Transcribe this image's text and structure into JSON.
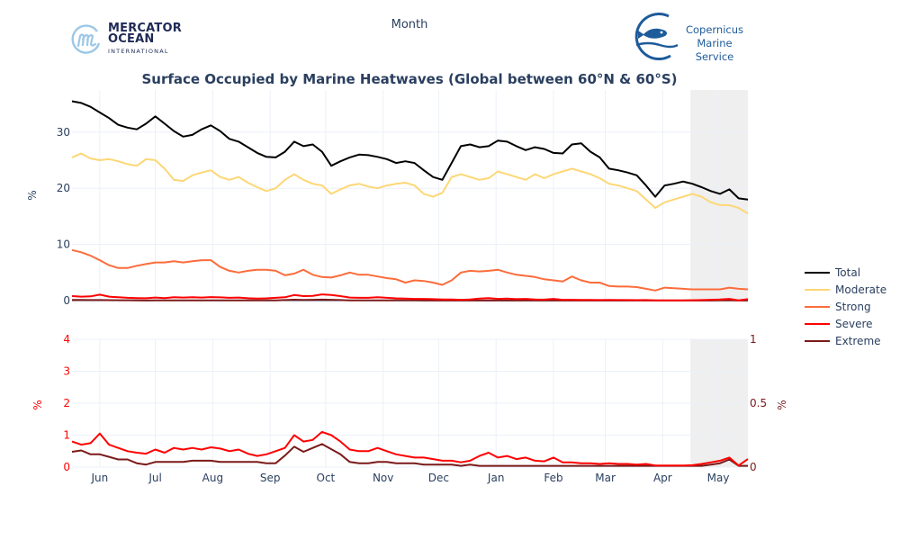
{
  "header": {
    "top_axis_label": "Month",
    "logo_left": {
      "line1": "MERCATOR",
      "line2": "OCEAN",
      "line3": "INTERNATIONAL"
    },
    "logo_right": {
      "line1": "Copernicus",
      "line2": "Marine Service"
    }
  },
  "chart_data": [
    {
      "type": "line",
      "title": "Surface Occupied by Marine Heatwaves (Global between 60°N & 60°S)",
      "xlabel": "Month",
      "ylabel": "%",
      "ylim": [
        0,
        37.5
      ],
      "yticks": [
        0,
        10,
        20,
        30
      ],
      "xticks": [
        "Jun",
        "Jul",
        "Aug",
        "Sep",
        "Oct",
        "Nov",
        "Dec",
        "Jan",
        "Feb",
        "Mar",
        "Apr",
        "May"
      ],
      "x_range_days": [
        0,
        365
      ],
      "xtick_days": [
        15,
        45,
        76,
        107,
        137,
        168,
        198,
        229,
        260,
        288,
        319,
        349
      ],
      "shaded_region_days": [
        334,
        365
      ],
      "grid": true,
      "legend_position": "right",
      "series": [
        {
          "name": "Total",
          "color": "#000000",
          "x": [
            0,
            5,
            10,
            15,
            20,
            25,
            30,
            35,
            40,
            45,
            50,
            55,
            60,
            65,
            70,
            75,
            80,
            85,
            90,
            95,
            100,
            105,
            110,
            115,
            120,
            125,
            130,
            135,
            140,
            145,
            150,
            155,
            160,
            165,
            170,
            175,
            180,
            185,
            190,
            195,
            200,
            205,
            210,
            215,
            220,
            225,
            230,
            235,
            240,
            245,
            250,
            255,
            260,
            265,
            270,
            275,
            280,
            285,
            290,
            295,
            300,
            305,
            310,
            315,
            320,
            325,
            330,
            335,
            340,
            345,
            350,
            355,
            360,
            365
          ],
          "values": [
            35.5,
            35.2,
            34.5,
            33.5,
            32.5,
            31.3,
            30.8,
            30.5,
            31.5,
            32.8,
            31.5,
            30.2,
            29.2,
            29.5,
            30.5,
            31.2,
            30.2,
            28.8,
            28.3,
            27.3,
            26.3,
            25.6,
            25.5,
            26.5,
            28.3,
            27.5,
            27.8,
            26.5,
            24.0,
            24.8,
            25.5,
            26.0,
            25.9,
            25.6,
            25.2,
            24.5,
            24.8,
            24.5,
            23.2,
            22.0,
            21.5,
            24.5,
            27.5,
            27.8,
            27.3,
            27.5,
            28.5,
            28.3,
            27.5,
            26.8,
            27.3,
            27.0,
            26.3,
            26.2,
            27.8,
            28.0,
            26.5,
            25.5,
            23.5,
            23.2,
            22.8,
            22.3,
            20.5,
            18.5,
            20.5,
            20.8,
            21.2,
            20.8,
            20.2,
            19.5,
            19.0,
            19.8,
            18.2,
            18.0
          ]
        },
        {
          "name": "Moderate",
          "color": "#fdd775",
          "x": [
            0,
            5,
            10,
            15,
            20,
            25,
            30,
            35,
            40,
            45,
            50,
            55,
            60,
            65,
            70,
            75,
            80,
            85,
            90,
            95,
            100,
            105,
            110,
            115,
            120,
            125,
            130,
            135,
            140,
            145,
            150,
            155,
            160,
            165,
            170,
            175,
            180,
            185,
            190,
            195,
            200,
            205,
            210,
            215,
            220,
            225,
            230,
            235,
            240,
            245,
            250,
            255,
            260,
            265,
            270,
            275,
            280,
            285,
            290,
            295,
            300,
            305,
            310,
            315,
            320,
            325,
            330,
            335,
            340,
            345,
            350,
            355,
            360,
            365
          ],
          "values": [
            25.5,
            26.2,
            25.3,
            25.0,
            25.2,
            24.8,
            24.3,
            24.0,
            25.2,
            25.0,
            23.5,
            21.5,
            21.3,
            22.3,
            22.8,
            23.2,
            22.0,
            21.5,
            22.0,
            21.0,
            20.2,
            19.5,
            20.0,
            21.5,
            22.5,
            21.5,
            20.8,
            20.5,
            19.0,
            19.8,
            20.5,
            20.8,
            20.3,
            20.0,
            20.5,
            20.8,
            21.0,
            20.5,
            19.0,
            18.5,
            19.2,
            22.0,
            22.5,
            22.0,
            21.5,
            21.8,
            23.0,
            22.5,
            22.0,
            21.5,
            22.5,
            21.8,
            22.5,
            23.0,
            23.5,
            23.0,
            22.5,
            21.8,
            20.8,
            20.5,
            20.0,
            19.5,
            18.0,
            16.5,
            17.5,
            18.0,
            18.5,
            19.0,
            18.5,
            17.5,
            17.0,
            17.0,
            16.5,
            15.5
          ]
        },
        {
          "name": "Strong",
          "color": "#fc6c3b",
          "x": [
            0,
            5,
            10,
            15,
            20,
            25,
            30,
            35,
            40,
            45,
            50,
            55,
            60,
            65,
            70,
            75,
            80,
            85,
            90,
            95,
            100,
            105,
            110,
            115,
            120,
            125,
            130,
            135,
            140,
            145,
            150,
            155,
            160,
            165,
            170,
            175,
            180,
            185,
            190,
            195,
            200,
            205,
            210,
            215,
            220,
            225,
            230,
            235,
            240,
            245,
            250,
            255,
            260,
            265,
            270,
            275,
            280,
            285,
            290,
            295,
            300,
            305,
            310,
            315,
            320,
            325,
            330,
            335,
            340,
            345,
            350,
            355,
            360,
            365
          ],
          "values": [
            9.0,
            8.6,
            8.0,
            7.2,
            6.3,
            5.8,
            5.8,
            6.2,
            6.5,
            6.8,
            6.8,
            7.0,
            6.8,
            7.0,
            7.2,
            7.2,
            6.0,
            5.3,
            5.0,
            5.3,
            5.5,
            5.5,
            5.3,
            4.5,
            4.8,
            5.5,
            4.6,
            4.2,
            4.1,
            4.5,
            5.0,
            4.6,
            4.6,
            4.3,
            4.0,
            3.8,
            3.2,
            3.6,
            3.5,
            3.2,
            2.8,
            3.6,
            5.0,
            5.3,
            5.2,
            5.3,
            5.5,
            5.0,
            4.6,
            4.4,
            4.2,
            3.8,
            3.6,
            3.4,
            4.3,
            3.6,
            3.2,
            3.2,
            2.6,
            2.5,
            2.5,
            2.4,
            2.1,
            1.8,
            2.3,
            2.2,
            2.1,
            2.0,
            2.0,
            2.0,
            2.0,
            2.3,
            2.1,
            2.0
          ]
        },
        {
          "name": "Severe",
          "color": "#ff0000",
          "x": [
            0,
            5,
            10,
            15,
            20,
            25,
            30,
            35,
            40,
            45,
            50,
            55,
            60,
            65,
            70,
            75,
            80,
            85,
            90,
            95,
            100,
            105,
            110,
            115,
            120,
            125,
            130,
            135,
            140,
            145,
            150,
            155,
            160,
            165,
            170,
            175,
            180,
            185,
            190,
            195,
            200,
            205,
            210,
            215,
            220,
            225,
            230,
            235,
            240,
            245,
            250,
            255,
            260,
            265,
            270,
            275,
            280,
            285,
            290,
            295,
            300,
            305,
            310,
            315,
            320,
            325,
            330,
            335,
            340,
            345,
            350,
            355,
            360,
            365
          ],
          "values": [
            0.8,
            0.7,
            0.75,
            1.05,
            0.7,
            0.6,
            0.5,
            0.45,
            0.42,
            0.55,
            0.45,
            0.6,
            0.55,
            0.6,
            0.55,
            0.62,
            0.58,
            0.5,
            0.55,
            0.42,
            0.35,
            0.4,
            0.5,
            0.6,
            1.0,
            0.8,
            0.85,
            1.1,
            1.0,
            0.8,
            0.55,
            0.5,
            0.5,
            0.6,
            0.5,
            0.4,
            0.35,
            0.3,
            0.3,
            0.25,
            0.2,
            0.2,
            0.15,
            0.2,
            0.35,
            0.45,
            0.3,
            0.35,
            0.25,
            0.3,
            0.2,
            0.18,
            0.3,
            0.15,
            0.15,
            0.12,
            0.12,
            0.1,
            0.12,
            0.1,
            0.1,
            0.08,
            0.1,
            0.05,
            0.05,
            0.05,
            0.05,
            0.06,
            0.1,
            0.15,
            0.2,
            0.3,
            0.05,
            0.25
          ]
        },
        {
          "name": "Extreme",
          "color": "#7b1a1a",
          "axis": "right",
          "x": [
            0,
            5,
            10,
            15,
            20,
            25,
            30,
            35,
            40,
            45,
            50,
            55,
            60,
            65,
            70,
            75,
            80,
            85,
            90,
            95,
            100,
            105,
            110,
            115,
            120,
            125,
            130,
            135,
            140,
            145,
            150,
            155,
            160,
            165,
            170,
            175,
            180,
            185,
            190,
            195,
            200,
            205,
            210,
            215,
            220,
            225,
            230,
            235,
            240,
            245,
            250,
            255,
            260,
            265,
            270,
            275,
            280,
            285,
            290,
            295,
            300,
            305,
            310,
            315,
            320,
            325,
            330,
            335,
            340,
            345,
            350,
            355,
            360,
            365
          ],
          "values": [
            0.12,
            0.13,
            0.1,
            0.1,
            0.08,
            0.06,
            0.06,
            0.03,
            0.02,
            0.04,
            0.04,
            0.04,
            0.04,
            0.05,
            0.05,
            0.05,
            0.04,
            0.04,
            0.04,
            0.04,
            0.04,
            0.03,
            0.03,
            0.09,
            0.16,
            0.12,
            0.15,
            0.18,
            0.14,
            0.1,
            0.04,
            0.03,
            0.03,
            0.04,
            0.04,
            0.03,
            0.03,
            0.03,
            0.02,
            0.02,
            0.02,
            0.02,
            0.01,
            0.02,
            0.01,
            0.01,
            0.01,
            0.01,
            0.01,
            0.01,
            0.01,
            0.01,
            0.01,
            0.01,
            0.01,
            0.01,
            0.01,
            0.01,
            0.01,
            0.01,
            0.01,
            0.01,
            0.01,
            0.01,
            0.01,
            0.01,
            0.01,
            0.01,
            0.01,
            0.02,
            0.03,
            0.06,
            0.01,
            0.01
          ]
        }
      ]
    },
    {
      "type": "line",
      "title": "",
      "ylabel_left": "%",
      "ylabel_right": "%",
      "ylim_left": [
        0,
        4
      ],
      "yticks_left": [
        0,
        1,
        2,
        3,
        4
      ],
      "ylim_right": [
        0,
        1
      ],
      "yticks_right": [
        "0",
        "0.5",
        "1"
      ],
      "left_axis_color": "#ff0000",
      "right_axis_color": "#7b1a1a",
      "series_refs": [
        "Severe",
        "Extreme"
      ]
    }
  ],
  "legend": {
    "items": [
      {
        "label": "Total",
        "color": "#000000"
      },
      {
        "label": "Moderate",
        "color": "#fdd775"
      },
      {
        "label": "Strong",
        "color": "#fc6c3b"
      },
      {
        "label": "Severe",
        "color": "#ff0000"
      },
      {
        "label": "Extreme",
        "color": "#7b1a1a"
      }
    ]
  }
}
